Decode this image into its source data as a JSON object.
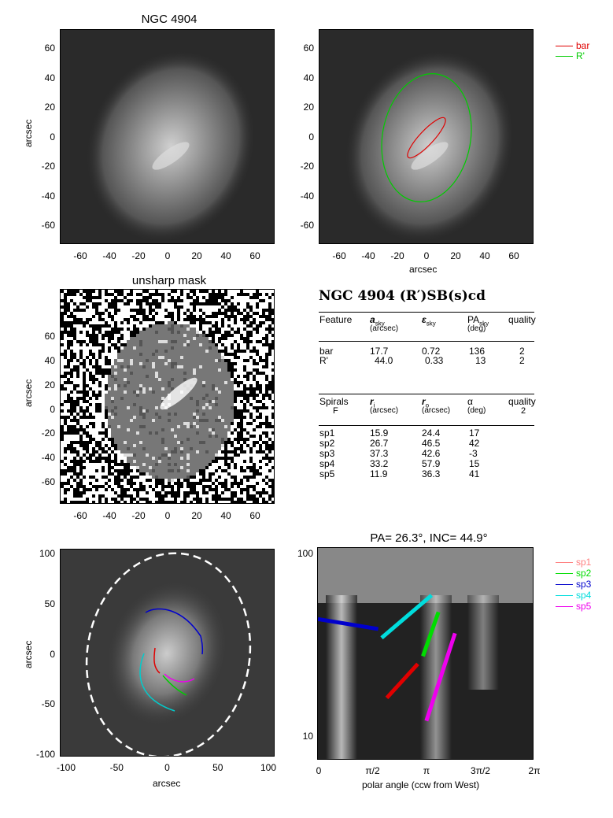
{
  "panel1": {
    "title": "NGC 4904",
    "ylabel": "arcsec",
    "yticks": [
      "60",
      "40",
      "20",
      "0",
      "-20",
      "-40",
      "-60"
    ],
    "xticks": [
      "-60",
      "-40",
      "-20",
      "0",
      "20",
      "40",
      "60"
    ]
  },
  "panel2": {
    "xlabel": "arcsec",
    "yticks": [
      "60",
      "40",
      "20",
      "0",
      "-20",
      "-40",
      "-60"
    ],
    "xticks": [
      "-60",
      "-40",
      "-20",
      "0",
      "20",
      "40",
      "60"
    ],
    "legend": [
      {
        "label": "bar",
        "color": "#e00000"
      },
      {
        "label": "R'",
        "color": "#00cc00"
      }
    ]
  },
  "panel3": {
    "title": "unsharp mask",
    "ylabel": "arcsec",
    "yticks": [
      "60",
      "40",
      "20",
      "0",
      "-20",
      "-40",
      "-60"
    ],
    "xticks": [
      "-60",
      "-40",
      "-20",
      "0",
      "20",
      "40",
      "60"
    ]
  },
  "table": {
    "heading": "NGC 4904  (R′)SB(s)cd",
    "feat_headers": [
      "Feature",
      "a",
      "sky",
      "(arcsec)",
      "ε",
      "sky",
      "PA",
      "sky",
      "(deg)",
      "quality"
    ],
    "feat_rows": [
      [
        "bar",
        "17.7",
        "0.72",
        "136",
        "2"
      ],
      [
        "R'",
        "44.0",
        "0.33",
        "13",
        "2"
      ]
    ],
    "spiral_headers": [
      "Spirals",
      "F",
      "r",
      "i",
      "(arcsec)",
      "r",
      "o",
      "(arcsec)",
      "α",
      "(deg)",
      "quality",
      "2"
    ],
    "spiral_rows": [
      [
        "sp1",
        "15.9",
        "24.4",
        "17"
      ],
      [
        "sp2",
        "26.7",
        "46.5",
        "42"
      ],
      [
        "sp3",
        "37.3",
        "42.6",
        "-3"
      ],
      [
        "sp4",
        "33.2",
        "57.9",
        "15"
      ],
      [
        "sp5",
        "11.9",
        "36.3",
        "41"
      ]
    ]
  },
  "panel5": {
    "xlabel": "arcsec",
    "ylabel": "arcsec",
    "yticks": [
      "100",
      "50",
      "0",
      "-50",
      "-100"
    ],
    "xticks": [
      "-100",
      "-50",
      "0",
      "50",
      "100"
    ]
  },
  "panel6": {
    "title": "PA=  26.3°, INC=  44.9°",
    "xlabel": "polar angle (ccw from West)",
    "yticks": [
      "100",
      "10"
    ],
    "xticks": [
      "0",
      "π/2",
      "π",
      "3π/2",
      "2π"
    ],
    "legend": [
      {
        "label": "sp1",
        "color": "#ff8080"
      },
      {
        "label": "sp2",
        "color": "#00dd00"
      },
      {
        "label": "sp3",
        "color": "#0000cc"
      },
      {
        "label": "sp4",
        "color": "#00dddd"
      },
      {
        "label": "sp5",
        "color": "#ee00ee"
      }
    ]
  }
}
